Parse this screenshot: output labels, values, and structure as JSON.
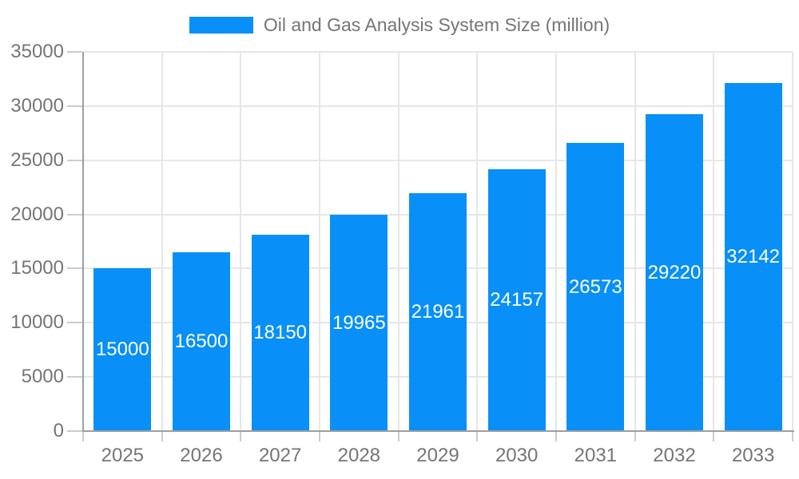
{
  "chart_data": {
    "type": "bar",
    "title": "Oil and Gas Analysis System Size (million)",
    "categories": [
      "2025",
      "2026",
      "2027",
      "2028",
      "2029",
      "2030",
      "2031",
      "2032",
      "2033"
    ],
    "values": [
      15000,
      16500,
      18150,
      19965,
      21961,
      24157,
      26573,
      29220,
      32142
    ],
    "series_name": "Oil and Gas Analysis System Size (million)",
    "xlabel": "",
    "ylabel": "",
    "ylim": [
      0,
      35000
    ],
    "ytick_step": 5000,
    "ytick_labels": [
      "0",
      "5000",
      "10000",
      "15000",
      "20000",
      "25000",
      "30000",
      "35000"
    ],
    "grid": true,
    "legend_position": "top",
    "bar_labels_inside": true
  },
  "colors": {
    "bar": "#0890f8",
    "bar_label": "#ffffff",
    "axis_text": "#757575",
    "title_text": "#757575",
    "gridline": "#e6e6e6",
    "axis_line": "#9e9e9e",
    "tick": "#cccccc",
    "background": "#ffffff"
  }
}
